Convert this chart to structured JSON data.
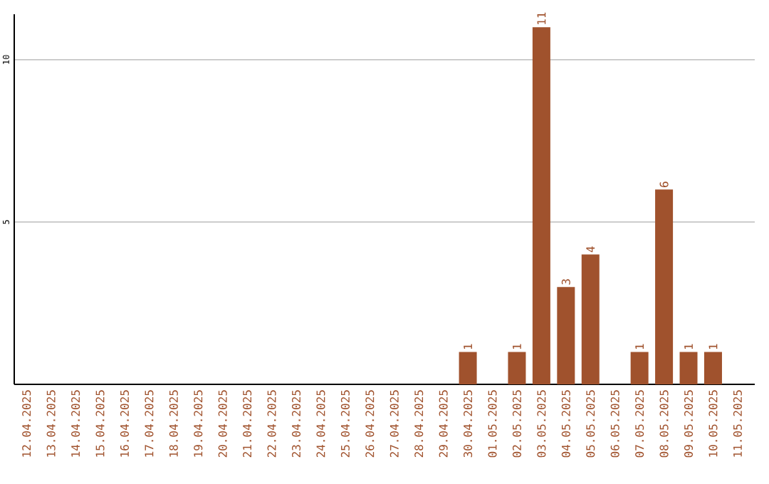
{
  "chart_data": {
    "type": "bar",
    "categories": [
      "12.04.2025",
      "13.04.2025",
      "14.04.2025",
      "15.04.2025",
      "16.04.2025",
      "17.04.2025",
      "18.04.2025",
      "19.04.2025",
      "20.04.2025",
      "21.04.2025",
      "22.04.2025",
      "23.04.2025",
      "24.04.2025",
      "25.04.2025",
      "26.04.2025",
      "27.04.2025",
      "28.04.2025",
      "29.04.2025",
      "30.04.2025",
      "01.05.2025",
      "02.05.2025",
      "03.05.2025",
      "04.05.2025",
      "05.05.2025",
      "06.05.2025",
      "07.05.2025",
      "08.05.2025",
      "09.05.2025",
      "10.05.2025",
      "11.05.2025"
    ],
    "values": [
      0,
      0,
      0,
      0,
      0,
      0,
      0,
      0,
      0,
      0,
      0,
      0,
      0,
      0,
      0,
      0,
      0,
      0,
      1,
      0,
      1,
      11,
      3,
      4,
      0,
      1,
      6,
      1,
      1,
      0
    ],
    "value_labels": [
      null,
      null,
      null,
      null,
      null,
      null,
      null,
      null,
      null,
      null,
      null,
      null,
      null,
      null,
      null,
      null,
      null,
      null,
      "1",
      null,
      "1",
      "11",
      "3",
      "4",
      null,
      "1",
      "6",
      "1",
      "1",
      null
    ],
    "color": "#a0522d",
    "ylim": [
      0,
      11.4
    ],
    "yticks": [
      5,
      10
    ],
    "grid": "y"
  }
}
